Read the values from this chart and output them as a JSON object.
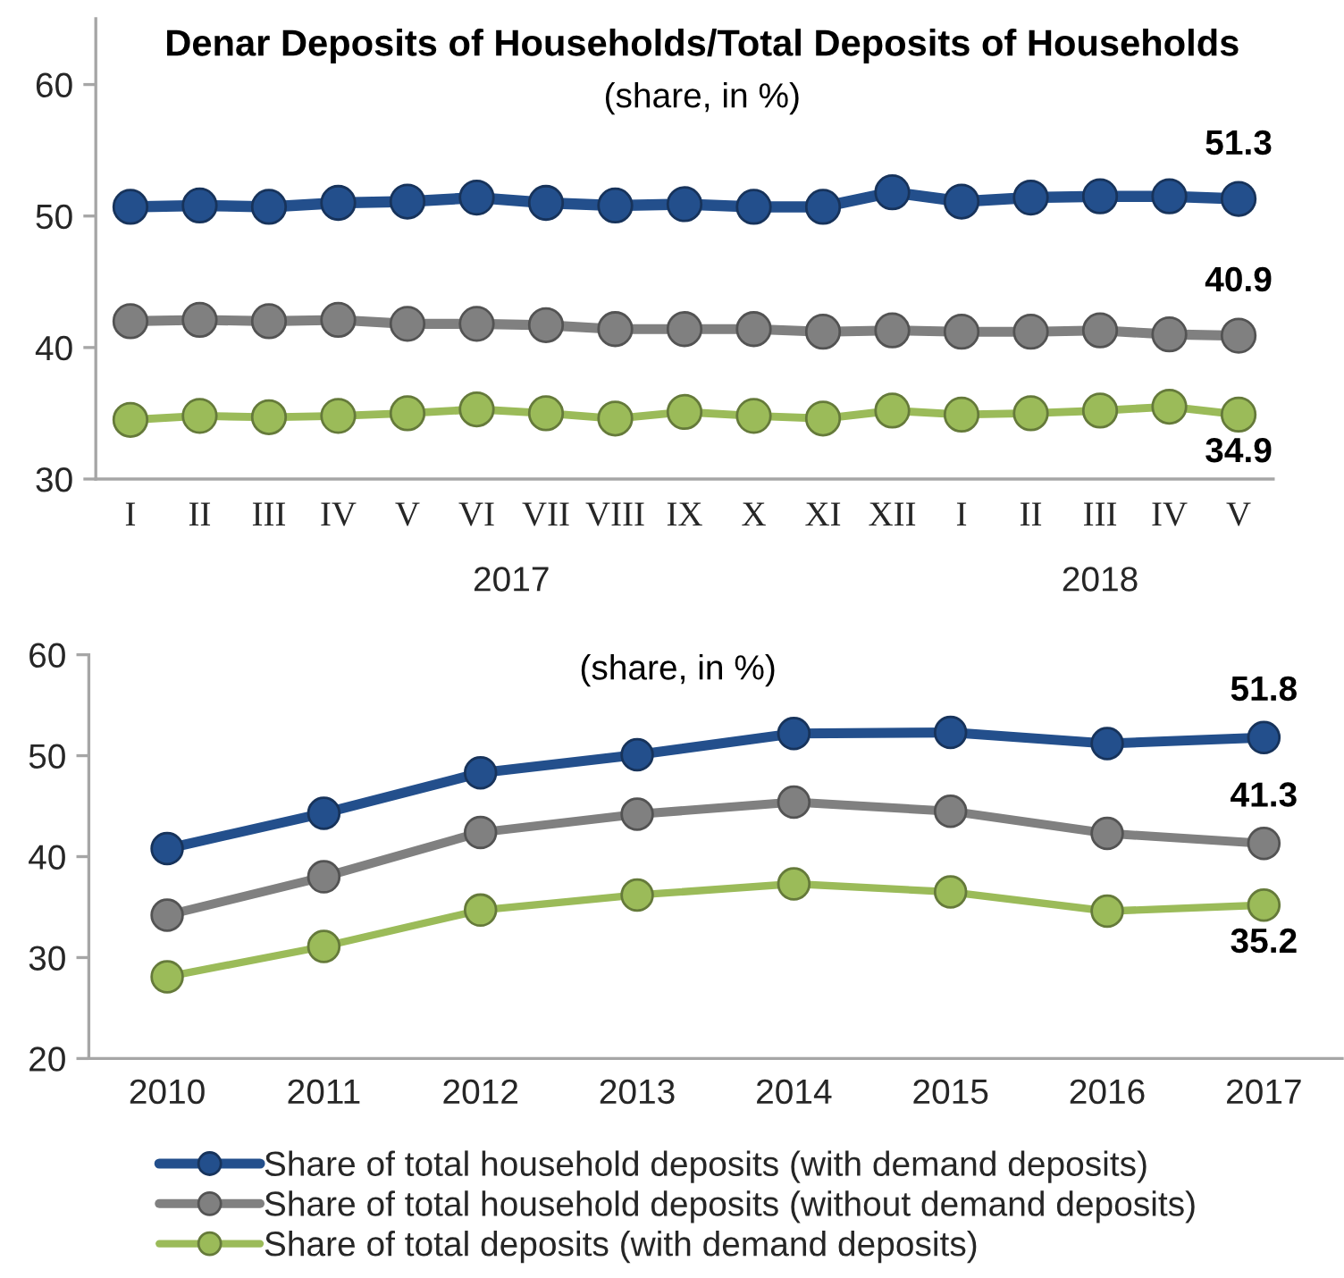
{
  "chart_data": [
    {
      "type": "line",
      "title": "Denar Deposits of Households/Total Deposits of Households",
      "subtitle": "(share, in %)",
      "categories": [
        "I",
        "II",
        "III",
        "IV",
        "V",
        "VI",
        "VII",
        "VIII",
        "IX",
        "X",
        "XI",
        "XII",
        "I",
        "II",
        "III",
        "IV",
        "V"
      ],
      "annotations": [
        "2017",
        "2018"
      ],
      "series": [
        {
          "color": "#234f8c",
          "values": [
            50.7,
            50.8,
            50.7,
            51.0,
            51.1,
            51.4,
            51.0,
            50.8,
            50.9,
            50.7,
            50.7,
            51.8,
            51.1,
            51.4,
            51.5,
            51.5,
            51.3
          ],
          "value_labels": [
            null,
            null,
            null,
            null,
            null,
            null,
            null,
            null,
            null,
            null,
            null,
            null,
            null,
            null,
            null,
            null,
            "51.3"
          ]
        },
        {
          "color": "#808080",
          "values": [
            42.0,
            42.1,
            42.0,
            42.1,
            41.8,
            41.8,
            41.7,
            41.4,
            41.4,
            41.4,
            41.2,
            41.3,
            41.2,
            41.2,
            41.3,
            41.0,
            40.9
          ],
          "value_labels": [
            null,
            null,
            null,
            null,
            null,
            null,
            null,
            null,
            null,
            null,
            null,
            null,
            null,
            null,
            null,
            null,
            "40.9"
          ]
        },
        {
          "color": "#9bbb59",
          "values": [
            34.5,
            34.8,
            34.7,
            34.8,
            35.0,
            35.3,
            35.0,
            34.6,
            35.1,
            34.8,
            34.6,
            35.2,
            34.9,
            35.0,
            35.2,
            35.5,
            34.9
          ],
          "value_labels": [
            null,
            null,
            null,
            null,
            null,
            null,
            null,
            null,
            null,
            null,
            null,
            null,
            null,
            null,
            null,
            null,
            "34.9"
          ]
        }
      ],
      "ylim": [
        30,
        65
      ],
      "yticks": [
        30,
        40,
        50,
        60
      ],
      "marker": "circle"
    },
    {
      "type": "line",
      "subtitle": "(share, in %)",
      "categories": [
        "2010",
        "2011",
        "2012",
        "2013",
        "2014",
        "2015",
        "2016",
        "2017"
      ],
      "series": [
        {
          "name": "Share of total household deposits (with demand deposits)",
          "color": "#234f8c",
          "values": [
            40.8,
            44.3,
            48.3,
            50.1,
            52.2,
            52.3,
            51.2,
            51.8
          ],
          "value_labels": [
            null,
            null,
            null,
            null,
            null,
            null,
            null,
            "51.8"
          ]
        },
        {
          "name": "Share of total household deposits (without demand deposits)",
          "color": "#808080",
          "values": [
            34.2,
            38.0,
            42.4,
            44.2,
            45.4,
            44.5,
            42.3,
            41.3
          ],
          "value_labels": [
            null,
            null,
            null,
            null,
            null,
            null,
            null,
            "41.3"
          ]
        },
        {
          "name": "Share of total deposits (with demand deposits)",
          "color": "#9bbb59",
          "values": [
            28.1,
            31.1,
            34.7,
            36.2,
            37.3,
            36.5,
            34.6,
            35.2
          ],
          "value_labels": [
            null,
            null,
            null,
            null,
            null,
            null,
            null,
            "35.2"
          ]
        }
      ],
      "ylim": [
        20,
        60
      ],
      "yticks": [
        20,
        30,
        40,
        50,
        60
      ],
      "marker": "circle",
      "legend": "bottom"
    }
  ]
}
